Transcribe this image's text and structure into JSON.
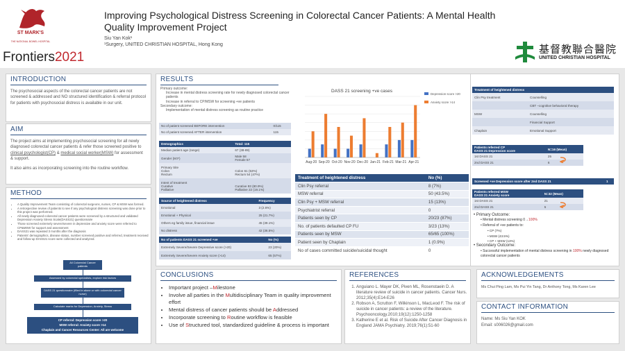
{
  "header": {
    "title": "Improving Psychological Distress Screening in Colorectal Cancer Patients: A Mental Health Quality Improvement Project",
    "author": "Siu Yan Kok¹",
    "affiliation": "¹Surgery, UNITED CHRISTIAN HOSPITAL, Hong Kong",
    "logo_left_name": "ST MARK'S",
    "logo_left_sub": "THE NATIONAL BOWEL HOSPITAL",
    "frontiers": "Frontiers",
    "frontiers_year": "2021",
    "logo_right_chinese": "基督教聯合醫院",
    "logo_right_english": "UNITED CHRISTIAN HOSPITAL"
  },
  "intro": {
    "heading": "INTRODUCTION",
    "text": "The psychosocial aspects of the colorectal cancer patients are not screened & addressed and NO structured identification & referral protocol for patients with psychosocial distress is available in our unit."
  },
  "aim": {
    "heading": "AIM",
    "text1": "The project aims at implementing psychosocial screening for all newly diagnosed colorectal cancer patients & refer those screened positive to ",
    "link1": "clinical psychologist(CP)",
    "text2": " & ",
    "link2": "medical social worker(MSW)",
    "text3": " for assessment & support.",
    "text4": "It also aims as incorporating screening into the routine workflow."
  },
  "method": {
    "heading": "METHOD",
    "bullets": [
      "A Quality Improvement Team consisting of colorectal surgeons, nurses, CP & MSW was formed.",
      "A retrospective review of patients to see if any psychological distress screening was done prior to this project was performed.",
      "All newly diagnosed colorectal cancer patients were screened by a structured and validated Depression Anxiety Stress Scale(DASS21) questionnaire",
      "Those screened extremely severe/severe in depressive and anxiety score were referred to CP&MSW for support and assessment",
      "DASS21 was repeated 3 months after the diagnosis",
      "Patients' demographics, disease status, number screened positive and referred, treatment received and follow-up DASS21 score were collected and analyzed."
    ],
    "flow": [
      "All Colorectal Cancer patients",
      "Assessed by colorectal specialists, explore risk factors",
      "DASS 21 questionnaire (filled in alone or with colorectal cancer nurse)",
      "Calculate marks for Depression, Anxiety, Stress"
    ],
    "flow_final": [
      "CP referral: Depression score >20",
      "MSW referral: Anxiety score >14",
      "Chaplain and Cancer Resources Center: All are welcome"
    ]
  },
  "results": {
    "heading": "RESULTS",
    "outcome_label": "Primary outcome:",
    "outcome_lines": [
      "Increase in mental distress screening rate  for newly diagnosed colorectal cancer patients",
      "Increase in referral to CP/MSW for screening +ve patients"
    ],
    "secondary_label": "Secondary outcome:",
    "secondary_lines": [
      "Implementation of mental distress screening as routine practice"
    ],
    "table_screen": [
      [
        "No of patient screened BEFORE intervention",
        "0/115"
      ],
      [
        "No of patient screened AFTER intervention",
        "115"
      ]
    ],
    "demo_header": [
      "Demographics",
      "Total: 115"
    ],
    "demo_rows": [
      [
        "Median patient age (range)",
        "67 (38-89)"
      ],
      [
        "Gender (M:F)",
        "Male 58\nFemale 57"
      ],
      [
        "Primary Site\n  Colon\n  Rectum",
        "\nColon 61 (53%)\nRectum 54 (47%)"
      ],
      [
        "Intent of treatment\n  Curative\n  Palliative",
        "\nCurative 93 (80.9%)\nPalliative 22 (19.1%)"
      ]
    ],
    "source_header": [
      "Source of heightened distress",
      "Frequency"
    ],
    "source_rows": [
      [
        "Emotional",
        "3 (2.6%)"
      ],
      [
        "Emotional + Physical",
        "25 (21.7%)"
      ],
      [
        "Others eg family issue, financial issue",
        "45 (39.1%)"
      ],
      [
        "No distress",
        "42 (36.5%)"
      ]
    ],
    "dass_header": [
      "No of patients DASS 21 screened +ve",
      "No (%)"
    ],
    "dass_rows": [
      [
        "Extremely Severe/Severe Depressive score (>20)",
        "23 (20%)"
      ],
      [
        "Extremely Severe/Severe Anxiety score (>14)",
        "65 (57%)"
      ]
    ],
    "tx_header": [
      "Treatment of heightened distress",
      "No (%)"
    ],
    "tx_rows": [
      [
        "Clin Psy referral",
        "8 (7%)"
      ],
      [
        "MSW referral",
        "50 (43.5%)"
      ],
      [
        "Clin Psy + MSW referral",
        "15 (13%)"
      ],
      [
        "Psychiatrist referral",
        "0"
      ],
      [
        "Patients seen by CP",
        "20/23 (87%)"
      ],
      [
        "No. of patients defaulted CP FU",
        "3/23 (13%)"
      ],
      [
        "Patients seen by MSW",
        "65/65 (100%)"
      ],
      [
        "Patient seen by Chaplain",
        "1 (0.9%)"
      ],
      [
        "No of cases committed suicide/suicidal thought",
        "0"
      ]
    ]
  },
  "chart_data": {
    "type": "bar",
    "title": "DASS 21 screening +ve cases",
    "categories": [
      "Aug-20",
      "Sep-20",
      "Oct-20",
      "Nov-20",
      "Dec-20",
      "Jan-21",
      "Feb-21",
      "Mar-21",
      "Apr-21"
    ],
    "series": [
      {
        "name": "Depression score >20",
        "color": "#4472c4",
        "values": [
          2,
          3,
          2,
          2,
          3,
          0,
          3,
          4,
          4
        ]
      },
      {
        "name": "Anxiety score >14",
        "color": "#ed7d31",
        "values": [
          6,
          10,
          7,
          5,
          9,
          1,
          7,
          8,
          12
        ]
      }
    ],
    "ylim": [
      0,
      14
    ],
    "grid": true
  },
  "right": {
    "hd_header": "Treatment of heightened distress",
    "hd_rows": [
      [
        "Clin Psy treatment",
        "Counselling"
      ],
      [
        "",
        "CBT –cognitive behavioral therapy"
      ],
      [
        "MSW",
        "Counselling"
      ],
      [
        "",
        "Financial Support"
      ],
      [
        "Chaplain",
        "Emotional Support"
      ]
    ],
    "cp_header": [
      "Patients referred CP\nDASS 21 Depression score",
      "N=16 (Mean)"
    ],
    "cp_rows": [
      [
        "1st DASS 21",
        "25"
      ],
      [
        "2nd DASS 21",
        "6"
      ]
    ],
    "msw_pre": [
      "Screened +ve Depression score after 2nd DASS 21",
      "1"
    ],
    "msw_header": [
      "Patients referred MSW\nDASS 21 Anxiety score",
      "N=32 (Mean)"
    ],
    "msw_rows": [
      [
        "1st DASS 21",
        "21"
      ],
      [
        "2nd DASS 21",
        "5"
      ]
    ],
    "primary_label": "Primary Outcome:",
    "primary_items": [
      "Mental distress screening 0→",
      "100%"
    ],
    "referral_label": "Referral of +ve patients to:",
    "referral_items": [
      "CP (7%)",
      "MSW (43.5%)",
      "CP + MSW (13%)"
    ],
    "secondary_label": "Secondary Outcome:",
    "secondary_pre": "Successful implementation of mental distress screening in ",
    "secondary_pct": "100%",
    "secondary_post": " newly diagnosed colorectal cancer patients"
  },
  "conclusions": {
    "heading": "CONCLUSIONS",
    "items": [
      {
        "pre": "Important project –",
        "hl": "M",
        "post": "ilestone"
      },
      {
        "pre": "Involve all parties in the ",
        "hl": "M",
        "post": "ultidisciplinary Team in quality improvement effort"
      },
      {
        "pre": "Mental distress of cancer patients should be ",
        "hl": "A",
        "post": "ddressed"
      },
      {
        "pre": "Incorporate screening to ",
        "hl": "R",
        "post": "outine workflow is feasible"
      },
      {
        "pre": "Use of ",
        "hl": "S",
        "post": "tructured tool, standardized guideline & process is important"
      }
    ]
  },
  "references": {
    "heading": "REFERENCES",
    "items": [
      "Anguiano L. Mayer DK, Piven ML, Rosenstaein D. A literature review of suicide in cancer patients. Cancer Nurs. 2012;35(4):E14-E26",
      "Robson A, Scrutton F, Wilkinson L, MacLeod F. The risk of suicide in cancer patients: a review of the literature. Psychooncology.2010;19(12):1250-1258",
      "Katherine E et al. Risk of Suicide After Cancer Diagnosis in England JAMA Psychiatry. 2019;76(1):51-60"
    ]
  },
  "ack": {
    "heading": "ACKNOWLEDGEMENTS",
    "text": "Ms Chui Ping Lam, Ms Pui Yin Tang, Dr Anthony Tong, Ms Karen Lee"
  },
  "contact": {
    "heading": "CONTACT INFORMATION",
    "name": "Name: Ms Siu Yan KOK",
    "email": "Email: s006026@gmail.com"
  }
}
